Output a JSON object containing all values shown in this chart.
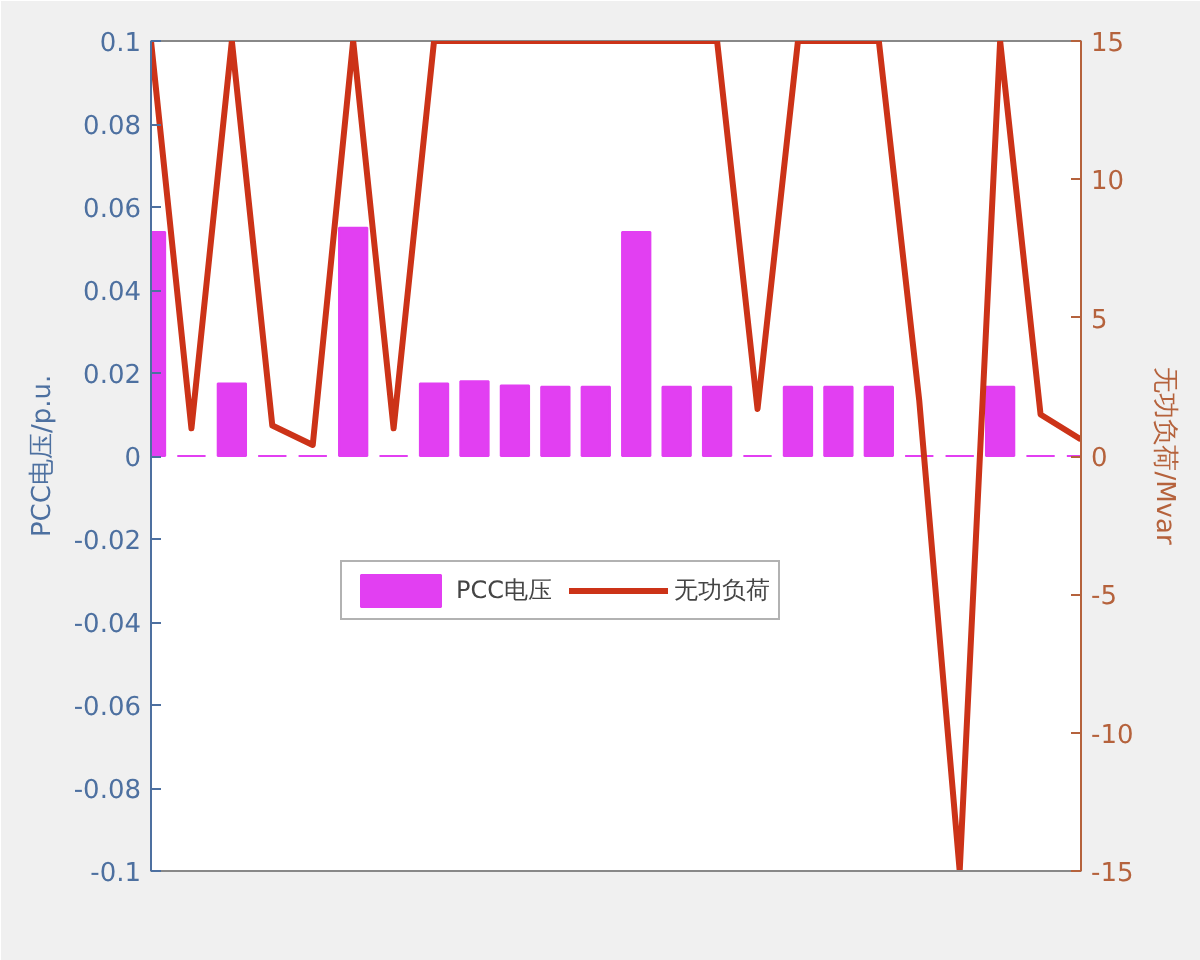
{
  "chart_data": {
    "type": "bar",
    "ylabel": "PCC电压/p.u.",
    "y2label": "无功负荷/Mvar",
    "categories": [
      null,
      null,
      null,
      null,
      null,
      null,
      null,
      null,
      null,
      null,
      null,
      null,
      null,
      null,
      null,
      null,
      null,
      null,
      null,
      null,
      null,
      null,
      null,
      null
    ],
    "ylim": [
      -0.1,
      0.1
    ],
    "yticks": [
      -0.1,
      -0.08,
      -0.06,
      -0.04,
      -0.02,
      0,
      0.02,
      0.04,
      0.06,
      0.08,
      0.1
    ],
    "y2lim": [
      -15,
      15
    ],
    "y2ticks": [
      -15,
      -10,
      -5,
      0,
      5,
      10,
      15
    ],
    "tick_labels": "y",
    "grid": false,
    "legend": "center",
    "series": [
      {
        "name": "PCC电压",
        "color": "#e23ff2",
        "values": [
          0.054,
          0,
          0.0175,
          0,
          0,
          0.055,
          0,
          0.0175,
          0.018,
          0.017,
          0.0167,
          0.0167,
          0.054,
          0.0167,
          0.0167,
          0,
          0.0167,
          0.0167,
          0.0167,
          0,
          0,
          0.0167,
          0,
          0
        ]
      },
      {
        "name": "无功负荷",
        "type": "line",
        "axis": "y2",
        "color": "#cc3318",
        "values": [
          15,
          1,
          15,
          1.1,
          0.4,
          15,
          1,
          15,
          15,
          15,
          15,
          15,
          15,
          15,
          15,
          1.7,
          15,
          15,
          15,
          2,
          -15,
          15,
          1.5,
          0.6
        ]
      }
    ]
  }
}
